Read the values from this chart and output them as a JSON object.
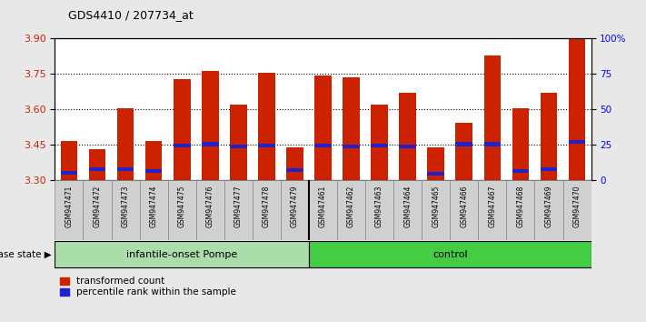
{
  "title": "GDS4410 / 207734_at",
  "samples": [
    "GSM947471",
    "GSM947472",
    "GSM947473",
    "GSM947474",
    "GSM947475",
    "GSM947476",
    "GSM947477",
    "GSM947478",
    "GSM947479",
    "GSM947461",
    "GSM947462",
    "GSM947463",
    "GSM947464",
    "GSM947465",
    "GSM947466",
    "GSM947467",
    "GSM947468",
    "GSM947469",
    "GSM947470"
  ],
  "red_values": [
    3.465,
    3.43,
    3.605,
    3.465,
    3.73,
    3.765,
    3.62,
    3.755,
    3.44,
    3.745,
    3.735,
    3.62,
    3.67,
    3.44,
    3.545,
    3.83,
    3.605,
    3.67,
    3.9
  ],
  "blue_values": [
    3.325,
    3.34,
    3.34,
    3.33,
    3.44,
    3.445,
    3.435,
    3.44,
    3.335,
    3.44,
    3.435,
    3.44,
    3.435,
    3.32,
    3.445,
    3.445,
    3.33,
    3.34,
    3.455
  ],
  "groups": [
    {
      "label": "infantile-onset Pompe",
      "start": 0,
      "end": 9,
      "color": "#aaddaa"
    },
    {
      "label": "control",
      "start": 9,
      "end": 19,
      "color": "#44cc44"
    }
  ],
  "ymin": 3.3,
  "ymax": 3.9,
  "yticks": [
    3.3,
    3.45,
    3.6,
    3.75,
    3.9
  ],
  "right_yticks": [
    0,
    25,
    50,
    75,
    100
  ],
  "bar_color": "#CC2200",
  "blue_color": "#2222CC",
  "background_color": "#E8E8E8",
  "plot_bg": "#FFFFFF",
  "legend_red_label": "transformed count",
  "legend_blue_label": "percentile rank within the sample",
  "disease_label": "disease state"
}
